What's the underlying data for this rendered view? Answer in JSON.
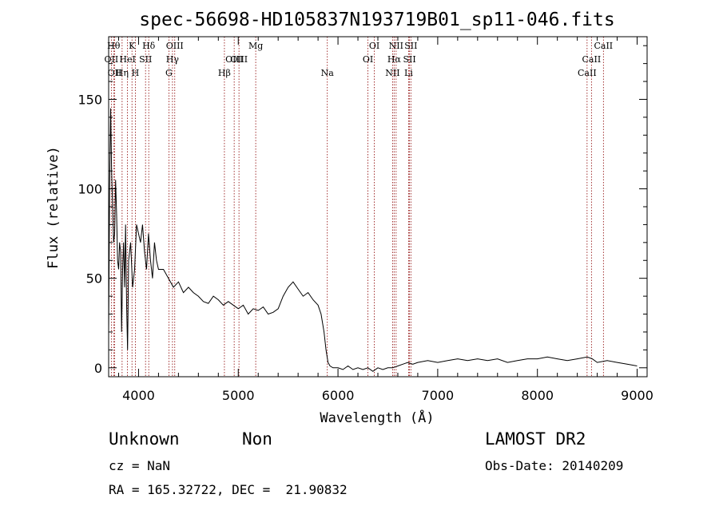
{
  "chart_data": {
    "type": "line",
    "title": "spec-56698-HD105837N193719B01_sp11-046.fits",
    "xlabel": "Wavelength (Å)",
    "ylabel": "Flux (relative)",
    "xlim": [
      3700,
      9100
    ],
    "ylim": [
      -5,
      185
    ],
    "xticks": [
      4000,
      5000,
      6000,
      7000,
      8000,
      9000
    ],
    "yticks": [
      0,
      50,
      100,
      150
    ],
    "grid": false,
    "series": [
      {
        "x": [
          3700,
          3710,
          3720,
          3730,
          3740,
          3750,
          3760,
          3770,
          3780,
          3790,
          3800,
          3810,
          3820,
          3830,
          3840,
          3850,
          3860,
          3870,
          3880,
          3890,
          3900,
          3920,
          3940,
          3960,
          3980,
          4000,
          4020,
          4040,
          4060,
          4080,
          4100,
          4120,
          4140,
          4160,
          4180,
          4200,
          4250,
          4300,
          4350,
          4400,
          4450,
          4500,
          4550,
          4600,
          4650,
          4700,
          4750,
          4800,
          4850,
          4900,
          4950,
          5000,
          5050,
          5100,
          5150,
          5200,
          5250,
          5300,
          5350,
          5400,
          5450,
          5500,
          5550,
          5600,
          5650,
          5700,
          5750,
          5800,
          5830,
          5860,
          5880,
          5900,
          5920,
          5950,
          6000,
          6050,
          6100,
          6150,
          6200,
          6250,
          6300,
          6350,
          6400,
          6450,
          6500,
          6550,
          6600,
          6650,
          6700,
          6750,
          6800,
          6900,
          7000,
          7100,
          7200,
          7300,
          7400,
          7500,
          7600,
          7700,
          7800,
          7900,
          8000,
          8100,
          8200,
          8300,
          8400,
          8500,
          8550,
          8600,
          8700,
          8800,
          8900,
          9000
        ],
        "y": [
          20,
          100,
          145,
          110,
          90,
          70,
          75,
          105,
          85,
          60,
          55,
          70,
          65,
          20,
          55,
          70,
          45,
          80,
          35,
          10,
          60,
          70,
          45,
          55,
          80,
          75,
          70,
          80,
          65,
          55,
          75,
          60,
          50,
          70,
          60,
          55,
          55,
          50,
          45,
          48,
          42,
          45,
          42,
          40,
          37,
          36,
          40,
          38,
          35,
          37,
          35,
          33,
          35,
          30,
          33,
          32,
          34,
          30,
          31,
          33,
          40,
          45,
          48,
          44,
          40,
          42,
          38,
          35,
          30,
          20,
          10,
          3,
          1,
          0,
          0,
          -1,
          1,
          -1,
          0,
          -1,
          0,
          -2,
          0,
          -1,
          0,
          0,
          1,
          2,
          3,
          2,
          3,
          4,
          3,
          4,
          5,
          4,
          5,
          4,
          5,
          3,
          4,
          5,
          5,
          6,
          5,
          4,
          5,
          6,
          5,
          3,
          4,
          3,
          2,
          1
        ]
      }
    ],
    "lines": [
      {
        "label": "OII",
        "x": 3727,
        "row": 2
      },
      {
        "label": "Hθ",
        "x": 3750,
        "row": 1
      },
      {
        "label": "OII",
        "x": 3760,
        "row": 3
      },
      {
        "label": "Hη",
        "x": 3835,
        "row": 3
      },
      {
        "label": "HeI",
        "x": 3889,
        "row": 2
      },
      {
        "label": "K",
        "x": 3934,
        "row": 1
      },
      {
        "label": "H",
        "x": 3968,
        "row": 3
      },
      {
        "label": "SII",
        "x": 4070,
        "row": 2
      },
      {
        "label": "Hδ",
        "x": 4102,
        "row": 1
      },
      {
        "label": "G",
        "x": 4304,
        "row": 3
      },
      {
        "label": "Hγ",
        "x": 4340,
        "row": 2
      },
      {
        "label": "OIII",
        "x": 4363,
        "row": 1
      },
      {
        "label": "Hβ",
        "x": 4861,
        "row": 3
      },
      {
        "label": "OIII",
        "x": 4959,
        "row": 2
      },
      {
        "label": "OIII",
        "x": 5007,
        "row": 2
      },
      {
        "label": "Mg",
        "x": 5175,
        "row": 1
      },
      {
        "label": "Na",
        "x": 5893,
        "row": 3
      },
      {
        "label": "OI",
        "x": 6300,
        "row": 2
      },
      {
        "label": "OI",
        "x": 6364,
        "row": 1
      },
      {
        "label": "NII",
        "x": 6548,
        "row": 3
      },
      {
        "label": "Hα",
        "x": 6563,
        "row": 2
      },
      {
        "label": "NII",
        "x": 6583,
        "row": 1
      },
      {
        "label": "Li",
        "x": 6708,
        "row": 3
      },
      {
        "label": "SII",
        "x": 6717,
        "row": 2
      },
      {
        "label": "SII",
        "x": 6731,
        "row": 1
      },
      {
        "label": "CaII",
        "x": 8498,
        "row": 3
      },
      {
        "label": "CaII",
        "x": 8542,
        "row": 2
      },
      {
        "label": "CaII",
        "x": 8662,
        "row": 1
      }
    ]
  },
  "info": {
    "class": "Unknown",
    "subclass": "Non",
    "survey": "LAMOST DR2",
    "cz": "cz = NaN",
    "obs_date": "Obs-Date: 20140209",
    "coords": "RA = 165.32722, DEC =  21.90832"
  }
}
